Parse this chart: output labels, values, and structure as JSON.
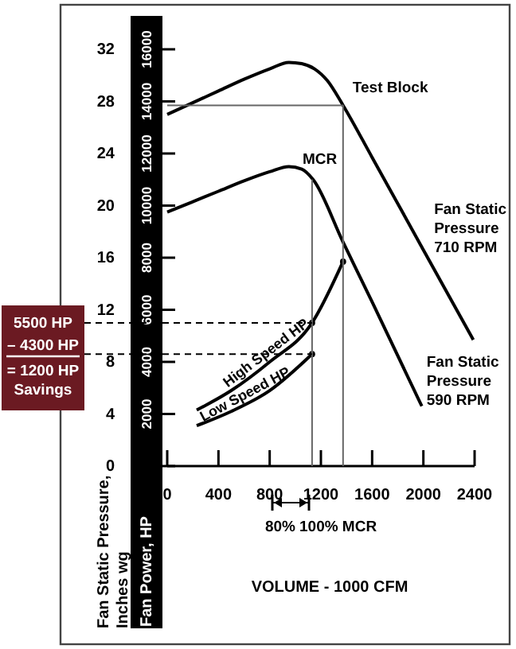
{
  "chart_data": {
    "type": "line",
    "xlabel": "VOLUME - 1000 CFM",
    "ylabel": "Fan Static Pressure, Inches wg",
    "y2label": "Fan Power, HP",
    "xlim": [
      0,
      2400
    ],
    "xticks": [
      0,
      400,
      800,
      1200,
      1600,
      2000,
      2400
    ],
    "ylim": [
      0,
      32
    ],
    "yticks": [
      0,
      4,
      8,
      12,
      16,
      20,
      24,
      28,
      32
    ],
    "y2lim": [
      0,
      16000
    ],
    "y2ticks": [
      2000,
      4000,
      6000,
      8000,
      10000,
      12000,
      14000,
      16000
    ],
    "grid": false,
    "series": [
      {
        "name": "Fan Static Pressure 710 RPM",
        "color": "#000000",
        "x": [
          0,
          200,
          400,
          600,
          800,
          950,
          1050,
          1150,
          1250,
          1373,
          1600,
          2000,
          2390
        ],
        "values": [
          27.0,
          27.9,
          28.8,
          29.7,
          30.5,
          31.0,
          30.9,
          30.5,
          29.6,
          27.7,
          23.7,
          16.6,
          9.7
        ]
      },
      {
        "name": "Fan Static Pressure 590 RPM",
        "color": "#000000",
        "x": [
          0,
          200,
          400,
          600,
          800,
          950,
          1050,
          1139,
          1373,
          1600,
          1988
        ],
        "values": [
          19.5,
          20.3,
          21.1,
          21.9,
          22.6,
          23.0,
          22.8,
          22.0,
          17.2,
          12.6,
          4.6
        ]
      },
      {
        "name": "High Speed HP",
        "axis": "y2",
        "color": "#000000",
        "x": [
          230,
          500,
          800,
          1131,
          1373
        ],
        "values": [
          2150,
          2900,
          4000,
          5500,
          7850
        ]
      },
      {
        "name": "Low Speed HP",
        "axis": "y2",
        "color": "#000000",
        "x": [
          230,
          500,
          800,
          1131
        ],
        "values": [
          1550,
          2100,
          2900,
          4300
        ]
      },
      {
        "type": "scatter",
        "axis": "y2",
        "marker": "circle",
        "color": "#000000",
        "x": [
          1131,
          1373,
          1131
        ],
        "values": [
          5500,
          7850,
          4300
        ]
      },
      {
        "color": "#666666",
        "x": [
          0,
          1373,
          1373
        ],
        "values": [
          27.7,
          27.7,
          0
        ]
      },
      {
        "color": "#666666",
        "x": [
          1131,
          1131
        ],
        "values": [
          22.0,
          0
        ]
      },
      {
        "axis": "y2",
        "color": "#000000",
        "line_style": "dashed",
        "x": [
          0,
          1131
        ],
        "values": [
          5500,
          5500
        ]
      },
      {
        "axis": "y2",
        "color": "#000000",
        "line_style": "dashed",
        "x": [
          0,
          1131
        ],
        "values": [
          4300,
          4300
        ]
      }
    ],
    "annotations": [
      {
        "text": "Test Block",
        "x": 1373,
        "y": 27.7
      },
      {
        "text": "MCR",
        "x": 1131,
        "y": 22.0
      },
      "80%",
      "100% MCR",
      "5500 HP",
      "– 4300 HP",
      "= 1200 HP Savings"
    ]
  }
}
